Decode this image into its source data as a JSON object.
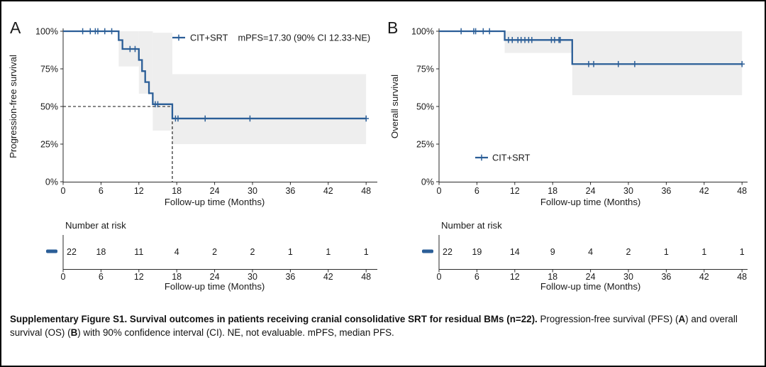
{
  "colors": {
    "curve": "#2b5e97",
    "ci_band": "#eeeeee",
    "axis": "#2b2b2b",
    "text": "#1a1a1a"
  },
  "caption": {
    "bold_title": "Supplementary Figure S1. Survival outcomes in patients receiving cranial consolidative SRT for residual BMs (n=22).",
    "body_pre": "Progression-free survival (PFS) (",
    "bold_a": "A",
    "body_mid": ") and overall survival (OS) (",
    "bold_b": "B",
    "body_post": ") with 90% confidence interval (CI). NE, not evaluable. mPFS, median PFS."
  },
  "chart_data": [
    {
      "type": "line",
      "subtype": "kaplan-meier",
      "panel": "A",
      "xlabel": "Follow-up time (Months)",
      "ylabel": "Progression-free survival",
      "xlim": [
        0,
        48
      ],
      "ylim": [
        0,
        100
      ],
      "x_ticks": [
        0,
        6,
        12,
        18,
        24,
        30,
        36,
        42,
        48
      ],
      "y_ticks": [
        "0%",
        "25%",
        "50%",
        "75%",
        "100%"
      ],
      "legend_position": "top-right",
      "grid": false,
      "series": [
        {
          "name": "CIT+SRT",
          "annotation": "mPFS=17.30 (90% CI 12.33-NE)",
          "steps": [
            [
              0,
              100
            ],
            [
              8.8,
              94.1
            ],
            [
              9.4,
              88.2
            ],
            [
              12.0,
              80.9
            ],
            [
              12.5,
              73.5
            ],
            [
              13.0,
              66.2
            ],
            [
              13.6,
              58.8
            ],
            [
              14.2,
              51.5
            ],
            [
              17.3,
              42.0
            ]
          ],
          "end_time": 48,
          "censor_marks": [
            [
              3.1,
              100
            ],
            [
              4.3,
              100
            ],
            [
              5.1,
              100
            ],
            [
              5.5,
              100
            ],
            [
              6.6,
              100
            ],
            [
              7.7,
              100
            ],
            [
              10.6,
              88.2
            ],
            [
              11.4,
              88.2
            ],
            [
              14.6,
              51.5
            ],
            [
              15.0,
              51.5
            ],
            [
              17.8,
              42.0
            ],
            [
              18.2,
              42.0
            ],
            [
              22.5,
              42.0
            ],
            [
              29.6,
              42.0
            ],
            [
              48,
              42.0
            ]
          ],
          "ci_band": [
            [
              8.8,
              12.0,
              76.6,
              100
            ],
            [
              12.0,
              14.2,
              58.5,
              100
            ],
            [
              14.2,
              17.3,
              34.0,
              99.0
            ],
            [
              17.3,
              48,
              25.0,
              71.5
            ]
          ],
          "median_reference": {
            "time": 17.3,
            "survival": 50
          }
        }
      ],
      "risk_table": {
        "title": "Number at risk",
        "times": [
          0,
          6,
          12,
          18,
          24,
          30,
          36,
          42,
          48
        ],
        "values": [
          22,
          18,
          11,
          4,
          2,
          2,
          1,
          1,
          1
        ]
      }
    },
    {
      "type": "line",
      "subtype": "kaplan-meier",
      "panel": "B",
      "xlabel": "Follow-up time (Months)",
      "ylabel": "Overall survival",
      "xlim": [
        0,
        48
      ],
      "ylim": [
        0,
        100
      ],
      "x_ticks": [
        0,
        6,
        12,
        18,
        24,
        30,
        36,
        42,
        48
      ],
      "y_ticks": [
        "0%",
        "25%",
        "50%",
        "75%",
        "100%"
      ],
      "legend_position": "inside-lower-left",
      "grid": false,
      "series": [
        {
          "name": "CIT+SRT",
          "annotation": "",
          "steps": [
            [
              0,
              100
            ],
            [
              10.4,
              94.2
            ],
            [
              21.1,
              78.2
            ]
          ],
          "end_time": 48,
          "censor_marks": [
            [
              3.5,
              100
            ],
            [
              5.5,
              100
            ],
            [
              5.8,
              100
            ],
            [
              7.0,
              100
            ],
            [
              8.0,
              100
            ],
            [
              11.0,
              94.2
            ],
            [
              11.6,
              94.2
            ],
            [
              12.5,
              94.2
            ],
            [
              13.0,
              94.2
            ],
            [
              13.6,
              94.2
            ],
            [
              14.2,
              94.2
            ],
            [
              14.7,
              94.2
            ],
            [
              17.8,
              94.2
            ],
            [
              18.3,
              94.2
            ],
            [
              19.0,
              94.2
            ],
            [
              19.2,
              94.2
            ],
            [
              23.7,
              78.2
            ],
            [
              24.5,
              78.2
            ],
            [
              28.4,
              78.2
            ],
            [
              31.0,
              78.2
            ],
            [
              48,
              78.2
            ]
          ],
          "ci_band": [
            [
              10.4,
              21.1,
              85.6,
              100
            ],
            [
              21.1,
              48,
              57.5,
              100
            ]
          ],
          "median_reference": null
        }
      ],
      "risk_table": {
        "title": "Number at risk",
        "times": [
          0,
          6,
          12,
          18,
          24,
          30,
          36,
          42,
          48
        ],
        "values": [
          22,
          19,
          14,
          9,
          4,
          2,
          1,
          1,
          1
        ]
      }
    }
  ]
}
